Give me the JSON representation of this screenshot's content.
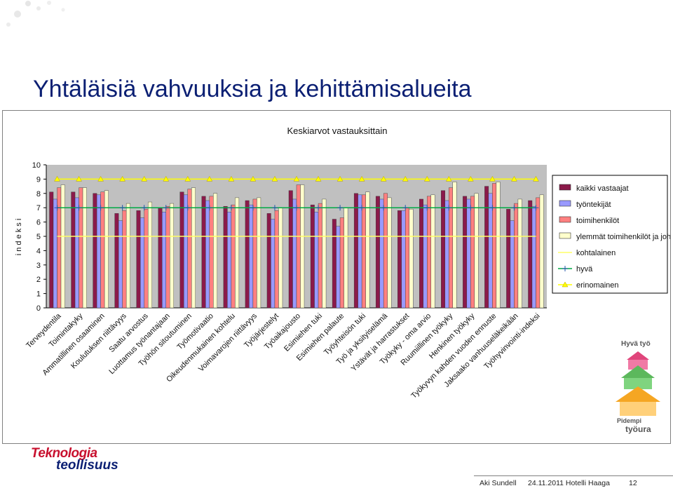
{
  "slide": {
    "title": "Yhtäläisiä vahvuuksia ja kehittämisalueita",
    "footer_author": "Aki Sundell",
    "footer_event": "24.11.2011 Hotelli Haaga",
    "page_number": "12",
    "logo_line1": "Teknologia",
    "logo_line2": "teollisuus",
    "badge_title": "Hyvä työ",
    "badge_line1": "Pidempi",
    "badge_line2": "työura"
  },
  "colors": {
    "accent": "#0b1f73",
    "logo_red": "#c8102e"
  },
  "chart_data": {
    "type": "bar",
    "title": "Keskiarvot vastauksittain",
    "ylabel": "i n d e k s i",
    "xlabel": "",
    "ylim": [
      0,
      10
    ],
    "yticks": [
      0,
      1,
      2,
      3,
      4,
      5,
      6,
      7,
      8,
      9,
      10
    ],
    "grid": false,
    "legend_position": "right",
    "categories": [
      "Terveydentila",
      "Toimintakyky",
      "Ammatillinen osaaminen",
      "Koulutuksen riittävyys",
      "Saatu arvostus",
      "Luottamus työnantajaan",
      "Työhön sitoutuminen",
      "Työmotivaatio",
      "Oikeudenmukainen kohtelu",
      "Voimavarojen riittävyys",
      "Työjärjestelyt",
      "Työaikajousto",
      "Esimiehen tuki",
      "Esimiehen palaute",
      "Työyhteisön tuki",
      "Työ ja yksityiselämä",
      "Ystävät ja harrastukset",
      "Työkyky - oma arvio",
      "Ruumiillinen työkyky",
      "Henkinen työkyky",
      "Työkyvyn kahden vuoden ennuste",
      "Jaksaako vanhuuseläkeikään",
      "Työhyvinvointi-indeksi"
    ],
    "category_labels_truncated": [
      "Terveydentila",
      "Toimintakyky",
      "Ammatillinen osaaminen",
      "Koulutuksen riittävyys",
      "Saatu arvostus",
      "Luottamus työnantajaan",
      "Työhön sitoutuminen",
      "Työmotivaatio",
      "Oikeudenmukainen kohtelu",
      "Voimavarojen riittävyys",
      "Työjärjestelyt",
      "Työaikajousto",
      "Esimiehen tuki",
      "Esimiehen palaute",
      "Työyhteisön tuki",
      "Työ ja yksityiselämä",
      "Ystävät ja harrastukset",
      "Työkyky - oma arvio",
      "Ruumiillinen työkyky",
      "Henkinen työkyky",
      "Työkyvyn kahden vuoden ennuste",
      "Jaksaako vanhuuseläkeikään",
      "Työhyvinvointi-indeksi"
    ],
    "series": [
      {
        "name": "kaikki vastaajat",
        "kind": "bar",
        "color": "#8b1a4a",
        "values": [
          8.1,
          8.1,
          8.0,
          6.6,
          6.8,
          7.0,
          8.1,
          7.8,
          7.1,
          7.5,
          6.6,
          8.2,
          7.2,
          6.2,
          8.0,
          7.8,
          6.8,
          7.6,
          8.2,
          7.8,
          8.5,
          6.9,
          7.5
        ]
      },
      {
        "name": "työntekijät",
        "kind": "bar",
        "color": "#9999ff",
        "values": [
          7.6,
          7.7,
          7.9,
          6.1,
          6.3,
          6.7,
          7.9,
          7.5,
          6.7,
          7.2,
          6.2,
          7.6,
          6.7,
          5.7,
          7.9,
          7.6,
          6.8,
          7.2,
          7.5,
          7.6,
          8.0,
          6.1,
          7.1
        ]
      },
      {
        "name": "toimihenkilöt",
        "kind": "bar",
        "color": "#ff8080",
        "values": [
          8.4,
          8.4,
          8.1,
          6.8,
          6.9,
          7.1,
          8.3,
          7.8,
          7.2,
          7.6,
          6.8,
          8.6,
          7.3,
          6.3,
          7.9,
          8.0,
          7.0,
          7.8,
          8.4,
          7.8,
          8.7,
          7.3,
          7.7
        ]
      },
      {
        "name": "ylemmät toimihenkilöt ja johto",
        "kind": "bar",
        "color": "#ffffcc",
        "values": [
          8.6,
          8.4,
          8.2,
          7.3,
          7.4,
          7.3,
          8.4,
          8.0,
          7.7,
          7.7,
          7.0,
          8.6,
          7.6,
          7.0,
          8.1,
          7.7,
          6.9,
          7.9,
          8.8,
          8.0,
          8.8,
          7.6,
          7.9
        ]
      },
      {
        "name": "kohtalainen",
        "kind": "line",
        "color": "#ffff66",
        "values": 5
      },
      {
        "name": "hyvä",
        "kind": "line",
        "color": "#00aa44",
        "marker": "cross",
        "values": 7
      },
      {
        "name": "erinomainen",
        "kind": "line",
        "color": "#ffff00",
        "marker": "triangle",
        "values": 9
      }
    ]
  }
}
